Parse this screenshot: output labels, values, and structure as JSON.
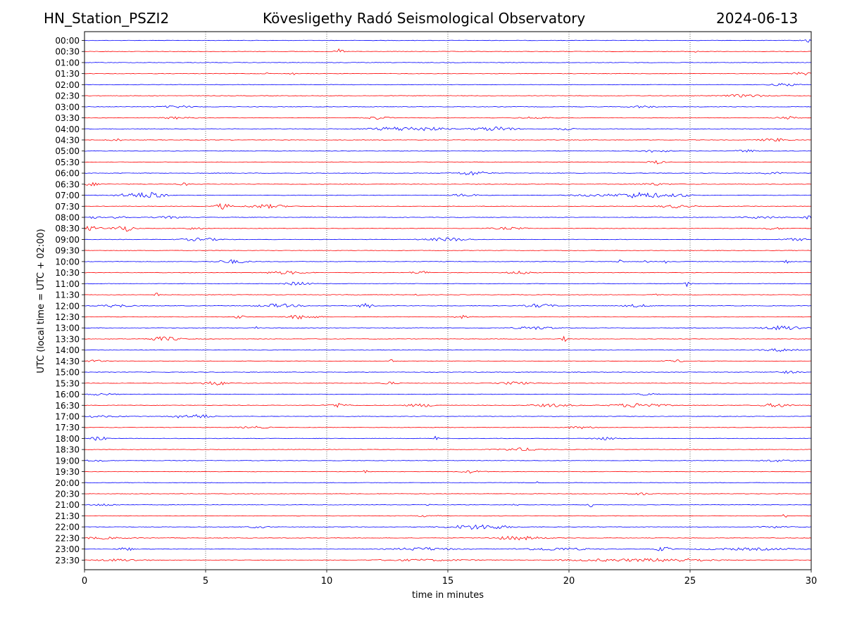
{
  "header": {
    "station": "HN_Station_PSZI2",
    "observatory": "Kövesligethy Radó Seismological Observatory",
    "date": "2024-06-13"
  },
  "chart_data": {
    "type": "line",
    "title": "Kövesligethy Radó Seismological Observatory",
    "xlabel": "time in minutes",
    "ylabel": "UTC (local time = UTC + 02:00)",
    "xlim": [
      0,
      30
    ],
    "xticks": [
      "0",
      "5",
      "10",
      "15",
      "20",
      "25",
      "30"
    ],
    "grid_x_minutes": [
      5,
      10,
      15,
      20,
      25
    ],
    "colors": {
      "even": "#0000ff",
      "odd": "#ff0000"
    },
    "rows": [
      {
        "label": "00:00",
        "color": "blue",
        "events": [
          [
            29.95,
            0.3,
            3
          ]
        ]
      },
      {
        "label": "00:30",
        "color": "red",
        "events": [
          [
            10.55,
            0.15,
            4
          ],
          [
            25.2,
            0.1,
            2
          ]
        ]
      },
      {
        "label": "01:00",
        "color": "blue",
        "events": []
      },
      {
        "label": "01:30",
        "color": "red",
        "events": [
          [
            7.6,
            0.1,
            2
          ],
          [
            8.6,
            0.1,
            2
          ],
          [
            29.6,
            0.4,
            2
          ]
        ]
      },
      {
        "label": "02:00",
        "color": "blue",
        "events": [
          [
            28.9,
            0.5,
            2
          ]
        ]
      },
      {
        "label": "02:30",
        "color": "red",
        "events": [
          [
            27.3,
            0.8,
            2
          ]
        ]
      },
      {
        "label": "03:00",
        "color": "blue",
        "events": [
          [
            3.8,
            0.7,
            1.5
          ],
          [
            23.0,
            0.5,
            1.5
          ]
        ]
      },
      {
        "label": "03:30",
        "color": "red",
        "events": [
          [
            3.8,
            0.6,
            1.5
          ],
          [
            12.1,
            0.5,
            2
          ],
          [
            18.6,
            0.6,
            1.5
          ],
          [
            29.0,
            0.4,
            2
          ]
        ]
      },
      {
        "label": "04:00",
        "color": "blue",
        "events": [
          [
            12.8,
            1.0,
            2.5
          ],
          [
            14.2,
            0.8,
            2
          ],
          [
            16.5,
            0.6,
            2
          ],
          [
            17.3,
            0.5,
            2.5
          ],
          [
            19.8,
            0.3,
            2
          ]
        ]
      },
      {
        "label": "04:30",
        "color": "red",
        "events": [
          [
            1.3,
            0.3,
            1.5
          ],
          [
            28.5,
            0.6,
            2
          ]
        ]
      },
      {
        "label": "05:00",
        "color": "blue",
        "events": [
          [
            23.6,
            0.5,
            2
          ],
          [
            27.3,
            0.4,
            2
          ]
        ]
      },
      {
        "label": "05:30",
        "color": "red",
        "events": [
          [
            23.6,
            0.3,
            2.5
          ]
        ]
      },
      {
        "label": "06:00",
        "color": "blue",
        "events": [
          [
            16.0,
            0.6,
            3
          ],
          [
            28.4,
            0.4,
            1.5
          ]
        ]
      },
      {
        "label": "06:30",
        "color": "red",
        "events": [
          [
            0.3,
            0.4,
            2
          ],
          [
            4.1,
            0.2,
            2
          ],
          [
            23.5,
            0.6,
            1.5
          ]
        ]
      },
      {
        "label": "07:00",
        "color": "blue",
        "events": [
          [
            2.3,
            0.9,
            3.5
          ],
          [
            3.0,
            0.2,
            6
          ],
          [
            15.7,
            0.5,
            2
          ],
          [
            21.0,
            0.8,
            1.5
          ],
          [
            23.0,
            1.0,
            4
          ],
          [
            24.6,
            0.4,
            2
          ]
        ]
      },
      {
        "label": "07:30",
        "color": "red",
        "events": [
          [
            5.7,
            0.3,
            4
          ],
          [
            7.5,
            0.8,
            2.5
          ],
          [
            24.4,
            0.7,
            2
          ]
        ]
      },
      {
        "label": "08:00",
        "color": "blue",
        "events": [
          [
            0.3,
            0.3,
            2
          ],
          [
            1.5,
            0.2,
            5
          ],
          [
            3.5,
            0.6,
            1.5
          ],
          [
            28.0,
            0.8,
            1.5
          ],
          [
            29.9,
            0.2,
            3
          ]
        ]
      },
      {
        "label": "08:30",
        "color": "red",
        "events": [
          [
            0.3,
            0.4,
            3
          ],
          [
            1.6,
            0.4,
            4.5
          ],
          [
            4.5,
            0.4,
            1.5
          ],
          [
            17.5,
            0.7,
            1.5
          ],
          [
            28.4,
            0.4,
            1.5
          ]
        ]
      },
      {
        "label": "09:00",
        "color": "blue",
        "events": [
          [
            4.8,
            0.8,
            2
          ],
          [
            15.0,
            0.8,
            2.5
          ],
          [
            29.4,
            0.6,
            1.5
          ]
        ]
      },
      {
        "label": "09:30",
        "color": "red",
        "events": []
      },
      {
        "label": "10:00",
        "color": "blue",
        "events": [
          [
            6.1,
            0.6,
            2.5
          ],
          [
            22.1,
            0.1,
            3
          ],
          [
            23.2,
            0.1,
            2
          ],
          [
            24.0,
            0.1,
            3
          ],
          [
            29.0,
            0.1,
            3
          ]
        ]
      },
      {
        "label": "10:30",
        "color": "red",
        "events": [
          [
            8.3,
            0.8,
            2
          ],
          [
            13.9,
            0.4,
            2
          ],
          [
            18.0,
            0.5,
            2
          ]
        ]
      },
      {
        "label": "11:00",
        "color": "blue",
        "events": [
          [
            8.8,
            0.5,
            2.5
          ],
          [
            24.9,
            0.1,
            4
          ]
        ]
      },
      {
        "label": "11:30",
        "color": "red",
        "events": [
          [
            3.0,
            0.1,
            3
          ],
          [
            13.7,
            0.1,
            2
          ],
          [
            23.6,
            0.1,
            3
          ]
        ]
      },
      {
        "label": "12:00",
        "color": "blue",
        "events": [
          [
            1.3,
            0.6,
            2
          ],
          [
            8.0,
            0.8,
            2.5
          ],
          [
            11.6,
            0.3,
            3.5
          ],
          [
            18.8,
            0.6,
            2.5
          ],
          [
            22.8,
            0.5,
            2
          ]
        ]
      },
      {
        "label": "12:30",
        "color": "red",
        "events": [
          [
            6.4,
            0.2,
            2.5
          ],
          [
            9.0,
            0.6,
            3
          ],
          [
            15.6,
            0.3,
            2
          ]
        ]
      },
      {
        "label": "13:00",
        "color": "blue",
        "events": [
          [
            7.1,
            0.1,
            2
          ],
          [
            18.6,
            0.8,
            2
          ],
          [
            28.9,
            0.8,
            3
          ]
        ]
      },
      {
        "label": "13:30",
        "color": "red",
        "events": [
          [
            3.3,
            0.6,
            3
          ],
          [
            19.8,
            0.1,
            4
          ]
        ]
      },
      {
        "label": "14:00",
        "color": "blue",
        "events": [
          [
            28.9,
            0.8,
            2
          ]
        ]
      },
      {
        "label": "14:30",
        "color": "red",
        "events": [
          [
            0.4,
            0.4,
            1.5
          ],
          [
            12.7,
            0.2,
            2
          ],
          [
            24.4,
            0.4,
            1.5
          ]
        ]
      },
      {
        "label": "15:00",
        "color": "blue",
        "events": [
          [
            29.0,
            0.5,
            1.5
          ]
        ]
      },
      {
        "label": "15:30",
        "color": "red",
        "events": [
          [
            5.4,
            0.6,
            2.5
          ],
          [
            12.6,
            0.3,
            2
          ],
          [
            17.8,
            0.6,
            2
          ]
        ]
      },
      {
        "label": "16:00",
        "color": "blue",
        "events": [
          [
            0.7,
            0.5,
            1.5
          ],
          [
            23.2,
            0.5,
            1.5
          ]
        ]
      },
      {
        "label": "16:30",
        "color": "red",
        "events": [
          [
            10.5,
            0.4,
            3
          ],
          [
            13.9,
            0.6,
            2
          ],
          [
            19.3,
            0.8,
            2
          ],
          [
            22.9,
            1.0,
            3
          ],
          [
            28.6,
            0.6,
            2.5
          ]
        ]
      },
      {
        "label": "17:00",
        "color": "blue",
        "events": [
          [
            3.8,
            0.3,
            2
          ],
          [
            4.7,
            0.5,
            3
          ],
          [
            0.5,
            1.0,
            1.2
          ]
        ]
      },
      {
        "label": "17:30",
        "color": "red",
        "events": [
          [
            7.0,
            0.6,
            1.5
          ],
          [
            20.5,
            0.6,
            1.5
          ]
        ]
      },
      {
        "label": "18:00",
        "color": "blue",
        "events": [
          [
            0.6,
            0.3,
            3
          ],
          [
            14.5,
            0.1,
            4
          ],
          [
            21.5,
            0.5,
            2
          ]
        ]
      },
      {
        "label": "18:30",
        "color": "red",
        "events": [
          [
            18.0,
            0.8,
            2
          ]
        ]
      },
      {
        "label": "19:00",
        "color": "blue",
        "events": [
          [
            0.5,
            0.4,
            1.5
          ],
          [
            28.6,
            0.6,
            1.5
          ]
        ]
      },
      {
        "label": "19:30",
        "color": "red",
        "events": [
          [
            11.6,
            0.1,
            2
          ],
          [
            16.0,
            0.4,
            2
          ]
        ]
      },
      {
        "label": "20:00",
        "color": "blue",
        "events": [
          [
            18.6,
            0.1,
            3
          ]
        ]
      },
      {
        "label": "20:30",
        "color": "red",
        "events": [
          [
            23.0,
            0.4,
            1.5
          ]
        ]
      },
      {
        "label": "21:00",
        "color": "blue",
        "events": [
          [
            0.8,
            0.5,
            1.5
          ],
          [
            14.2,
            0.1,
            2
          ],
          [
            17.8,
            0.1,
            2.5
          ],
          [
            20.9,
            0.1,
            3
          ]
        ]
      },
      {
        "label": "21:30",
        "color": "red",
        "events": [
          [
            14.2,
            0.4,
            1.5
          ],
          [
            28.9,
            0.1,
            3
          ]
        ]
      },
      {
        "label": "22:00",
        "color": "blue",
        "events": [
          [
            16.3,
            1.2,
            3.5
          ],
          [
            7.2,
            0.4,
            1.5
          ],
          [
            28.5,
            0.5,
            1.2
          ]
        ]
      },
      {
        "label": "22:30",
        "color": "red",
        "events": [
          [
            17.9,
            1.0,
            2.5
          ],
          [
            0.5,
            1.5,
            1.2
          ]
        ]
      },
      {
        "label": "23:00",
        "color": "blue",
        "events": [
          [
            1.7,
            0.3,
            2.5
          ],
          [
            14.0,
            1.2,
            2
          ],
          [
            19.4,
            1.5,
            1.8
          ],
          [
            23.9,
            0.3,
            3
          ],
          [
            27.5,
            2.0,
            1.5
          ]
        ]
      },
      {
        "label": "23:30",
        "color": "red",
        "events": [
          [
            1.5,
            1.0,
            1.5
          ],
          [
            14.0,
            2.0,
            1.2
          ],
          [
            21.8,
            2.0,
            1.5
          ],
          [
            24.5,
            1.5,
            2
          ]
        ]
      }
    ]
  }
}
